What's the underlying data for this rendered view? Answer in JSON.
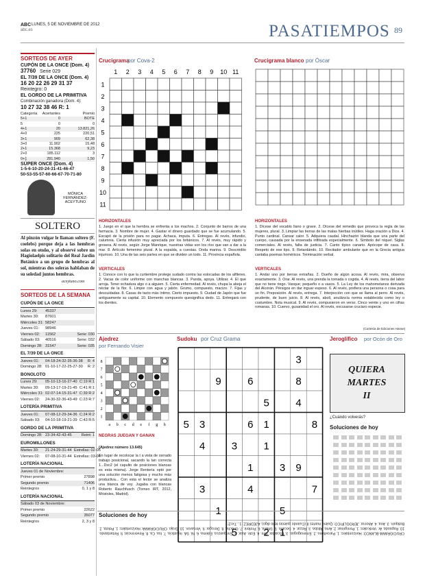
{
  "header": {
    "brand": "ABC",
    "date": "LUNES, 5 DE NOVIEMBRE DE 2012",
    "site": "abc.es",
    "section": "PASATIEMPOS",
    "page": "89"
  },
  "sorteos_ayer": {
    "title": "SORTEOS DE AYER",
    "cupon": {
      "heading": "CUPÓN DE LA ONCE (Dom. 4)",
      "number": "37760",
      "serie": "Serie 029"
    },
    "siete": {
      "heading": "EL 7/39 DE LA ONCE (Dom. 4)",
      "numbers": "16 20 22 26 29 31 37",
      "reintegro": "Reintegro: 0"
    },
    "gordo": {
      "heading": "EL GORDO DE LA PRIMITIVA",
      "sub": "Combinación ganadora (Dom. 4):",
      "numbers": "10 27 32 38 46 R: 1",
      "table": [
        [
          "Categoría",
          "Acertantes",
          "Premio"
        ],
        [
          "5+1",
          "0",
          "BOTE"
        ],
        [
          "5",
          "0",
          "0"
        ],
        [
          "4+1",
          "20",
          "13.821,26"
        ],
        [
          "4+0",
          "225",
          "220,51"
        ],
        [
          "3+1",
          "909",
          "62,38"
        ],
        [
          "3+0",
          "11.902",
          "15,48"
        ],
        [
          "2+1",
          "15.368",
          "9,23"
        ],
        [
          "2+0",
          "185.112",
          "3"
        ],
        [
          "0+1",
          "281.940",
          "1,50"
        ]
      ]
    },
    "super": {
      "heading": "SÚPER ONCE (Dom. 4)",
      "lines": [
        "1-5-6-10-20-24-31-41-46-47",
        "50-53-55-57-60-66-67-70-71-80"
      ]
    }
  },
  "column": {
    "author": "MÓNICA FERNÁNDEZ-ACEYTUNO",
    "title": "SOLTERO",
    "text": "Al pinzón vulgar le llaman soltero (F. coelebs) porque deja a las hembras solas en otoño, y al observé sobre un Hagiolaelpis solitario del Real Jardín Botánico a un grupo de hembras al sol, mientras dos soleras hablaban de su soledad juntos hembras.",
    "signature": "aceytuno.com"
  },
  "sorteos_semana": {
    "title": "SORTEOS DE LA SEMANA",
    "sections": [
      {
        "heading": "CUPÓN DE LA ONCE",
        "rows": [
          [
            "Lunes 29:",
            "45337",
            ""
          ],
          [
            "Martes 30:",
            "87601",
            ""
          ],
          [
            "Miércoles 31:",
            "58247",
            ""
          ],
          [
            "Jueves 01:",
            "98946",
            ""
          ],
          [
            "Viernes 02:",
            "11562",
            "Serie: 030"
          ],
          [
            "Sábado 03:",
            "40516",
            "Serie: 032"
          ],
          [
            "Domingo 28:",
            "31547",
            "Serie: 035"
          ]
        ]
      },
      {
        "heading": "EL 7/39 DE LA ONCE",
        "rows": [
          [
            "Jueves 01:",
            "04-18-24-32-35-36-38",
            "R: 4"
          ],
          [
            "Domingo 28:",
            "01-10-17-22-25-27-30",
            "R: 2"
          ]
        ]
      },
      {
        "heading": "BONOLOTO",
        "rows": [
          [
            "Lunes 29:",
            "05-10-13-16-27-40",
            "C:19 R:1"
          ],
          [
            "Martes 30:",
            "09-13-17-19-21-45",
            "C:41 R:1"
          ],
          [
            "Miércoles 31:",
            "02-07-14-15-31-47",
            "C:39 R:2"
          ],
          [
            "Viernes 02:",
            "24-30-32-36-43-49",
            "C:23 R:7"
          ]
        ]
      },
      {
        "heading": "LOTERÍA PRIMITIVA",
        "rows": [
          [
            "Jueves 01:",
            "07-08-12-29-34-36",
            "C:24 R:2"
          ],
          [
            "Sábado 03:",
            "04-10-18-19-21-39",
            "C:43 R:5"
          ]
        ]
      },
      {
        "heading": "GORDO DE LA PRIMITIVA",
        "rows": [
          [
            "Domingo 28:",
            "23-34-42-43-45",
            "Reint: 1"
          ]
        ]
      },
      {
        "heading": "EUROMILLONES",
        "rows": [
          [
            "Martes 30:",
            "21-24-29-31-44",
            "Estrellas: 02-05"
          ],
          [
            "Viernes 02:",
            "07-08-10-31-44",
            "Estrellas: 03-04"
          ]
        ]
      },
      {
        "heading": "LOTERÍA NACIONAL",
        "rows": [
          [
            "Jueves 01 de Noviembre:",
            "",
            ""
          ],
          [
            "Primer premio",
            "",
            "27898"
          ],
          [
            "Segundo premio",
            "",
            "71406"
          ],
          [
            "Reintegros",
            "",
            "0, 1 y 8"
          ]
        ]
      },
      {
        "heading": "LOTERÍA NACIONAL",
        "rows": [
          [
            "Sábado 03 de Noviembre:",
            "",
            ""
          ],
          [
            "Primer premio",
            "",
            "22622"
          ],
          [
            "Segundo premio",
            "",
            "35077"
          ],
          [
            "Reintegros",
            "",
            "2, 3 y 8"
          ]
        ]
      }
    ]
  },
  "crucigrama": {
    "title": "Crucigrama",
    "author": "por Cova-2",
    "numbers": [
      1,
      2,
      3,
      4,
      5,
      6,
      7,
      8,
      9,
      10,
      11
    ],
    "h_title": "HORIZONTALES",
    "h_text": "1. Juego en el que la hembra se enfrenta a los machos. 2. Conjunto de barros de una farmacia. 3. Nombre de mujer. 4. Gastar el dinero guardado que se fue acumulando. 5. Escapó de la prisión para no pagar. Achaca, imputa. 6. Entregas. Al revés, infundio, calumnia. Cierta infusión muy apreciada por los británicos. 7. Al revés, muy rápido y grosera. Al revés, según Jorge Manrique, nuestras vidas son los ríos que van a dar a la mar. 8. Artículo femenino plural. A la espalda, a cuestas. Onda marina. 9. Descrédito injurioso. 10. Una de las seis partes en que se dividen un todo. 11. Provincia española.",
    "v_title": "VERTICALES",
    "v_text": "1. Conoce con lo que la curtiembre protege sudado contra las estocadas de los alfileres. 2. Vacas de color uniforme con manchas blancas. 3. Panda, apoya. Utilizar. 4. El que arroja. Tener echadura algo o a alguien. 5. Cierta enfermedad. Al revés, chupa la abeja el néctar de la flor. 6. Limpie con agua y jabón. Grumo, compuesto, macizo. 7. Fijas y descuidadas. 8. Casas de tacto más íntimo. Cierto impuesto. 9. Ciudad de Japón que fue antiguamente su capital. 10. Elemento compuesto quesignifica dedo. 11. Entregará con los dientes."
  },
  "crucigrama_blanco": {
    "title": "Crucigrama blanco",
    "author": "por Óscar",
    "h_title": "HORIZONTALES",
    "h_text": "1. Dícese del vocablo llano o grave. 2. Dícese del remedio que provoca la regla de las mujeres, plural. 3. Limpiar las tierras de las malas hierbas inútiles. Haga oración a Dios. 4. Punto cardinal. Cansar calor. 5. Adquiera caudal. Hinchazón blanda que una parte del cuerpo, causada por la ensenada infiltrada especialmente. 6. Símbolo del níquel. Siglas comerciales. Al revés, falta de justicia. 7. Canto típico canario. Apócope de casa. 8. Respeto de ese tipo. 9. Retardándo. 10. Recitador ambulante que en la Grecia antigua cantaba poemas homéricos. Terminación verbal.",
    "v_title": "VERTICALES",
    "v_text": "1. Andar uno por tierras extrañas. 2. Dueño de algún acosa. Al revés, mira, observa exactamente. 3. Orar. Al revés, una prenda la tornada o cogida. 4. Al revés, tierra del labor que no tiene riego. Vasque; pequeño o a vasos. 5. La Ley de los mahometanos derivada del Alcorán. Pérsigos en dar inguar espeso. 6. Al revés, prefiera una persona o cosa para un fin. Preposición. Al revés, entrega. 7. Interjección con que se llama al perro. Al revés, prudente, de buen juicio. 8. Al revés, abolí, anuláncía norma establecida como ley o costumbre. Nota musical. 9. Al revés, compusieron en verso. Cinco veinte y uno en cifras romanas. 10. Cuervo, gusanidad el oro. Al revés, excusarse cruciaro especie.",
    "credit": "(Cortesía de Ediciones Hanse)"
  },
  "ajedrez": {
    "title": "Ajedrez",
    "author": "por Fernando Visier",
    "files": [
      "a",
      "b",
      "c",
      "d",
      "e",
      "f",
      "g",
      "h"
    ],
    "ranks": [
      "8",
      "7",
      "6",
      "5",
      "4",
      "3",
      "2",
      "1"
    ],
    "heading": "NEGRAS JUEGAN Y GANAN",
    "number": "(Ajedrez número 13.645)",
    "text": "En lugar de recolocar la t a vista de cerrado trabajo posicional, sacando la tan correcta 1...Dxc2 (el capulto de posiciones blancas es esta misma). Jorge Rentería optó por una solución menos fatigosa y mucho más productiva... Con esta el lector se analiza una blanca de voy. Jugaba con blancas Roberto Rauchfusch (Torneo IRT, 2012, Móstoles, Madrid)."
  },
  "sudoku": {
    "title": "Sudoku",
    "author": "por Cruz Grama",
    "grid": [
      [
        null,
        null,
        null,
        null,
        null,
        null,
        null,
        3,
        null
      ],
      [
        null,
        null,
        9,
        null,
        6,
        null,
        null,
        8,
        null
      ],
      [
        null,
        null,
        null,
        null,
        null,
        5,
        null,
        4,
        null
      ],
      [
        5,
        3,
        null,
        null,
        6,
        1,
        null,
        null,
        8
      ],
      [
        null,
        4,
        null,
        3,
        null,
        1,
        null,
        null,
        null
      ],
      [
        null,
        null,
        null,
        null,
        1,
        null,
        3,
        9,
        null
      ],
      [
        null,
        3,
        null,
        null,
        4,
        null,
        null,
        null,
        7
      ],
      [
        null,
        null,
        1,
        null,
        null,
        null,
        5,
        null,
        null
      ],
      [
        null,
        null,
        null,
        5,
        null,
        2,
        1,
        null,
        null
      ]
    ]
  },
  "jeroglifico": {
    "title": "Jeroglífico",
    "author": "por Ocón de Oro",
    "lines": [
      "QUIERA",
      "MARTES",
      "II"
    ],
    "question": "¿Cuándo volverás?"
  },
  "soluciones_right": {
    "title": "Soluciones de hoy"
  },
  "soluciones": {
    "title": "Soluciones de hoy",
    "text": "CRUCIGRAMA BLANCO: Horizontales: 1. Paroxítono. 2. Emenagogas. 3. Escardar. Ore. 4. Este. Asar. 5. Enriquezca. Edema. 6. Ni. SA. Injusticia. 7. Isa. Ca. 8. Reverencial. 9. Retardando. 10. Rapsoda. Ar. Verticales: 1. Peregrinar. 2. Amo. Atisba. 3. Rezar. 4. Secano. 5. Sharia. 6. Preferir. 7. Chucho. 8. Derogar. 9. Versaron. 10. Grajo. CRUCIGRAMA: Horizontales: 1. Pelota. 2. Botiquín. 3. Ana. 4. Ahorrar. JEROGLÍFICO: Quiera martes II (Cuando quieras te lo digo). AJEDREZ: 1...Txc2!"
  }
}
